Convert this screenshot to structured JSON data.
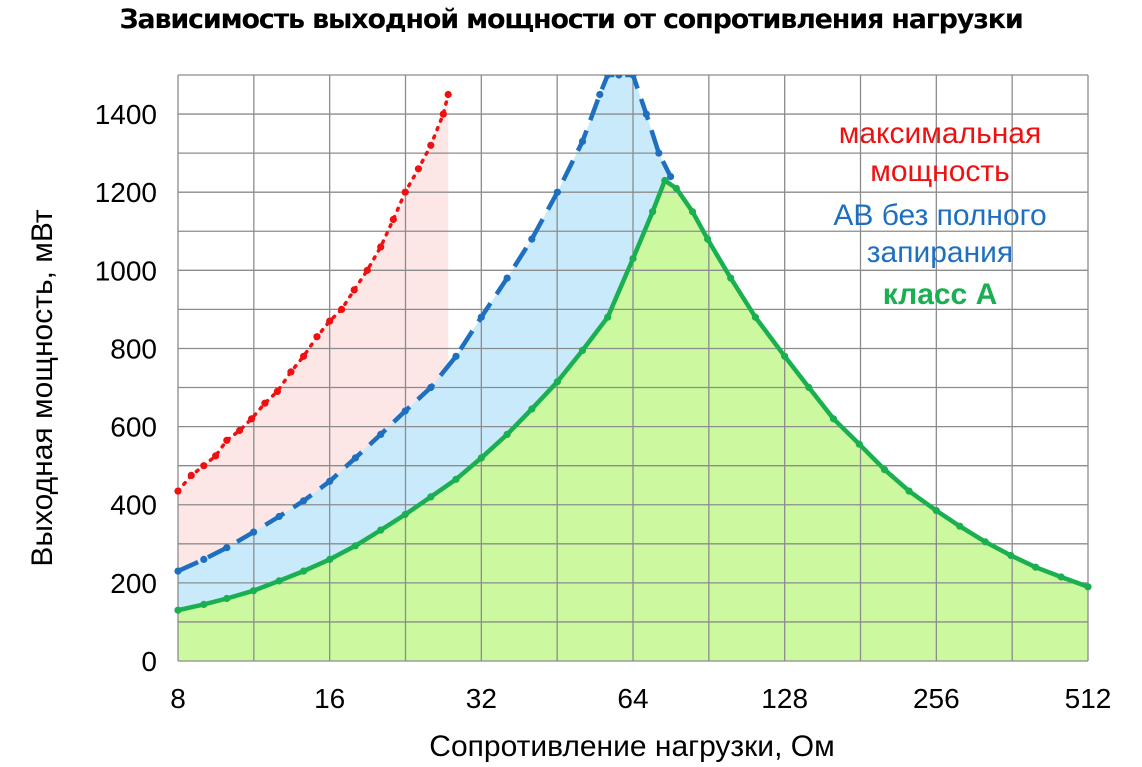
{
  "chart_data": {
    "type": "line",
    "title": "Зависимость выходной мощности от сопротивления нагрузки",
    "xlabel": "Сопротивление нагрузки, Ом",
    "ylabel": "Выходная мощность, мВт",
    "xscale": "log2",
    "xlim": [
      8,
      512
    ],
    "ylim": [
      0,
      1500
    ],
    "xticks": [
      8,
      16,
      32,
      64,
      128,
      256,
      512
    ],
    "yticks": [
      0,
      200,
      400,
      600,
      800,
      1000,
      1200,
      1400
    ],
    "grid": true,
    "legend_position": "right",
    "series": [
      {
        "name": "максимальная мощность",
        "color": "#ee1111",
        "fill": "#fde6e6",
        "style": "dotted",
        "x": [
          8,
          8.5,
          9,
          9.5,
          10,
          10.6,
          11.2,
          11.9,
          12.6,
          13.4,
          14.2,
          15.1,
          16,
          16.9,
          17.9,
          19,
          20.2,
          21.4,
          22.6,
          24,
          25.4,
          26.9,
          27.5
        ],
        "y": [
          435,
          475,
          500,
          525,
          565,
          590,
          620,
          660,
          690,
          740,
          780,
          830,
          870,
          900,
          950,
          1000,
          1060,
          1130,
          1200,
          1260,
          1320,
          1400,
          1450
        ]
      },
      {
        "name": "АВ без полного запирания",
        "color": "#1e6fc0",
        "fill": "#c9eafb",
        "style": "dashed",
        "x": [
          8,
          9,
          10,
          11.3,
          12.7,
          14.2,
          16,
          18,
          20.2,
          22.6,
          25.4,
          28.5,
          32,
          36,
          40.3,
          45.3,
          50.8,
          55,
          57,
          60,
          64,
          68,
          72,
          76
        ],
        "y": [
          230,
          260,
          290,
          330,
          370,
          410,
          460,
          520,
          580,
          640,
          700,
          780,
          880,
          980,
          1080,
          1200,
          1330,
          1450,
          1500,
          1500,
          1500,
          1400,
          1300,
          1240
        ]
      },
      {
        "name": "класс А",
        "color": "#1aaf50",
        "fill": "#ccf99f",
        "style": "solid",
        "x": [
          8,
          9,
          10,
          11.3,
          12.7,
          14.2,
          16,
          18,
          20.2,
          22.6,
          25.4,
          28.5,
          32,
          36,
          40.3,
          45.3,
          50.8,
          57,
          64,
          70,
          74,
          78,
          84,
          90,
          100,
          112,
          128,
          143,
          160,
          180,
          202,
          226,
          256,
          285,
          320,
          360,
          403,
          453,
          512
        ],
        "y": [
          130,
          145,
          160,
          180,
          205,
          230,
          260,
          295,
          335,
          375,
          420,
          465,
          520,
          580,
          645,
          715,
          795,
          880,
          1030,
          1150,
          1230,
          1210,
          1150,
          1080,
          980,
          880,
          780,
          700,
          620,
          555,
          490,
          435,
          385,
          345,
          305,
          270,
          240,
          215,
          190
        ]
      }
    ]
  }
}
